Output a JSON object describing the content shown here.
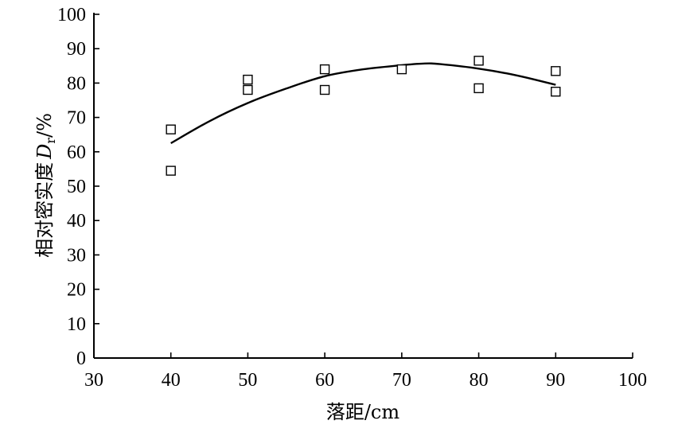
{
  "chart_data": {
    "type": "scatter",
    "title": "",
    "xlabel": "落距/cm",
    "ylabel_main": "相对密实度",
    "ylabel_symbol": "D",
    "ylabel_subscript": "r",
    "ylabel_unit": "/%",
    "xlim": [
      30,
      100
    ],
    "ylim": [
      0,
      100
    ],
    "xticks": [
      30,
      40,
      50,
      60,
      70,
      80,
      90,
      100
    ],
    "yticks": [
      0,
      10,
      20,
      30,
      40,
      50,
      60,
      70,
      80,
      90,
      100
    ],
    "grid": false,
    "legend": "none",
    "points": [
      {
        "x": 40,
        "y": 66.5
      },
      {
        "x": 40,
        "y": 54.5
      },
      {
        "x": 50,
        "y": 81.0
      },
      {
        "x": 50,
        "y": 78.0
      },
      {
        "x": 60,
        "y": 84.0
      },
      {
        "x": 60,
        "y": 78.0
      },
      {
        "x": 70,
        "y": 84.0
      },
      {
        "x": 80,
        "y": 86.5
      },
      {
        "x": 80,
        "y": 78.5
      },
      {
        "x": 90,
        "y": 83.5
      },
      {
        "x": 90,
        "y": 77.5
      }
    ],
    "fit_curve": [
      {
        "x": 40,
        "y": 62.5
      },
      {
        "x": 45,
        "y": 68.9
      },
      {
        "x": 50,
        "y": 74.2
      },
      {
        "x": 55,
        "y": 78.4
      },
      {
        "x": 60,
        "y": 82.0
      },
      {
        "x": 65,
        "y": 84.0
      },
      {
        "x": 70,
        "y": 85.2
      },
      {
        "x": 73,
        "y": 85.7
      },
      {
        "x": 75,
        "y": 85.5
      },
      {
        "x": 80,
        "y": 84.2
      },
      {
        "x": 85,
        "y": 82.2
      },
      {
        "x": 90,
        "y": 79.5
      }
    ]
  }
}
